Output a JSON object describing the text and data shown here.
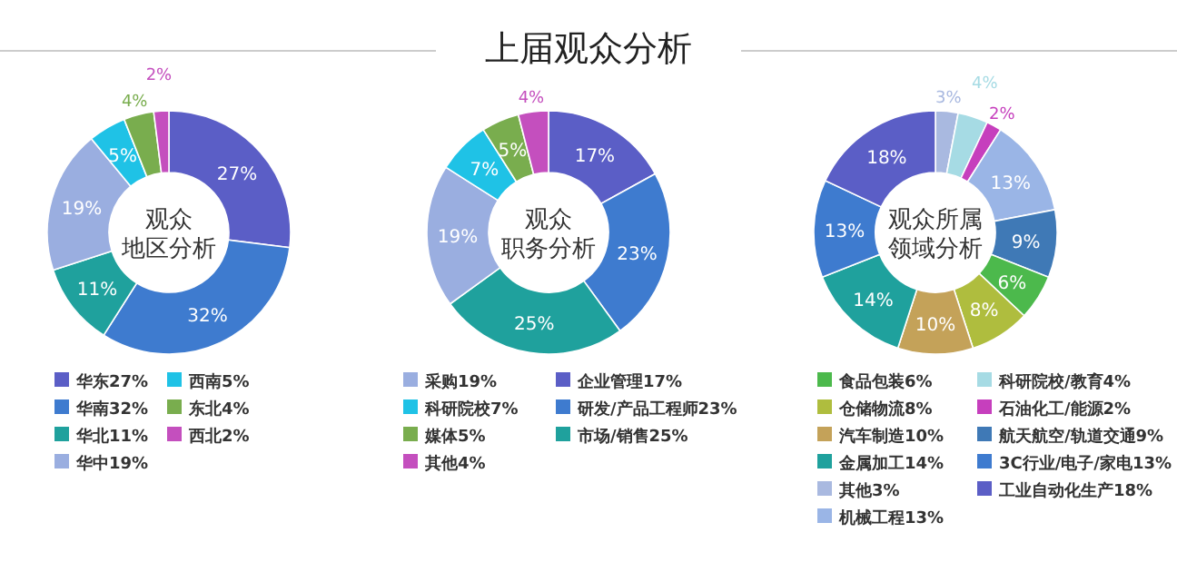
{
  "chart_data": [
    {
      "type": "donut",
      "annotations": [
        "观众",
        "地区分析"
      ],
      "categories": [
        "华东27%",
        "华南32%",
        "华北11%",
        "华中19%",
        "西南5%",
        "东北4%",
        "西北2%"
      ],
      "values": [
        27,
        32,
        11,
        19,
        5,
        4,
        2
      ],
      "value_labels": [
        "27%",
        "32%",
        "11%",
        "19%",
        "5%",
        "4%",
        "2%"
      ],
      "colors": [
        "#5b5ec6",
        "#3e7bcf",
        "#1fa19d",
        "#9aaee0",
        "#1fc2e6",
        "#79ad4e",
        "#c44fbe"
      ],
      "legend": "bottom"
    },
    {
      "type": "donut",
      "title": "上届观众分析",
      "annotations": [
        "观众",
        "职务分析"
      ],
      "categories": [
        "企业管理17%",
        "研发/产品工程师23%",
        "市场/销售25%",
        "采购19%",
        "科研院校7%",
        "媒体5%",
        "其他4%"
      ],
      "values": [
        17,
        23,
        25,
        19,
        7,
        5,
        4
      ],
      "value_labels": [
        "17%",
        "23%",
        "25%",
        "19%",
        "7%",
        "5%",
        "4%"
      ],
      "colors": [
        "#5b5ec6",
        "#3e7bcf",
        "#1fa19d",
        "#9aaee0",
        "#1fc2e6",
        "#79ad4e",
        "#c44fbe"
      ],
      "legend": "bottom"
    },
    {
      "type": "donut",
      "annotations": [
        "观众所属",
        "领域分析"
      ],
      "categories": [
        "其他3%",
        "科研院校/教育4%",
        "石油化工/能源2%",
        "机械工程13%",
        "航天航空/轨道交通9%",
        "食品包装6%",
        "仓储物流8%",
        "汽车制造10%",
        "金属加工14%",
        "3C行业/电子/家电13%",
        "工业自动化生产18%"
      ],
      "values": [
        3,
        4,
        2,
        13,
        9,
        6,
        8,
        10,
        14,
        13,
        18
      ],
      "value_labels": [
        "3%",
        "4%",
        "2%",
        "13%",
        "9%",
        "6%",
        "8%",
        "10%",
        "14%",
        "13%",
        "18%"
      ],
      "colors": [
        "#a9b9e0",
        "#a6dbe4",
        "#c63fbd",
        "#9ab5e6",
        "#3f79b6",
        "#4cb94c",
        "#afbd3e",
        "#c4a259",
        "#1fa19d",
        "#3e7bcf",
        "#5b5ec6"
      ],
      "legend": "bottom"
    }
  ]
}
